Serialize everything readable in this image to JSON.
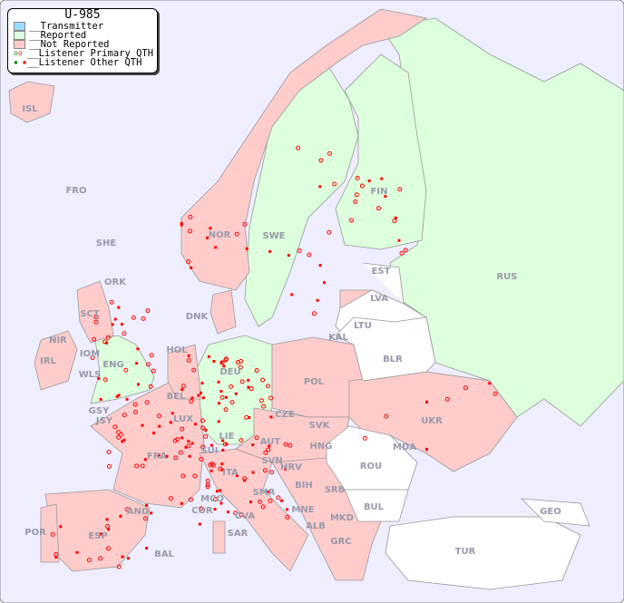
{
  "title": "U-985",
  "legend": [
    {
      "label": "__Transmitter",
      "color": "#99ddff",
      "kind": "swatch"
    },
    {
      "label": "__Reported",
      "color": "#ddffdd",
      "kind": "swatch"
    },
    {
      "label": "__Not Reported",
      "color": "#ffcccc",
      "kind": "swatch"
    },
    {
      "label": "__Listener Primary QTH",
      "kind": "circle"
    },
    {
      "label": "__Listener Other QTH",
      "kind": "square"
    }
  ],
  "colors": {
    "sea": "#eeeeff",
    "reported": "#ddffdd",
    "not_reported": "#ffcccc",
    "no_data": "#ffffff",
    "listener": "#ff0000",
    "listener_reported": "#008800"
  },
  "labels": {
    "ISL": "ISL",
    "FRO": "FRO",
    "SHE": "SHE",
    "ORK": "ORK",
    "NOR": "NOR",
    "SWE": "SWE",
    "FIN": "FIN",
    "RUS": "RUS",
    "EST": "EST",
    "LVA": "LVA",
    "LTU": "LTU",
    "KAL": "KAL",
    "BLR": "BLR",
    "DNK": "DNK",
    "HOL": "HOL",
    "BEL": "BEL",
    "DEU": "DEU",
    "POL": "POL",
    "IRL": "IRL",
    "NIR": "NIR",
    "SCT": "SCT",
    "IOM": "IOM",
    "WLS": "WLS",
    "ENG": "ENG",
    "GSY": "GSY",
    "JSY": "JSY",
    "LUX": "LUX",
    "CZE": "CZE",
    "SVK": "SVK",
    "UKR": "UKR",
    "FRA": "FRA",
    "SUI": "SUI",
    "LIE": "LIE",
    "AUT": "AUT",
    "HNG": "HNG",
    "MDA": "MDA",
    "ROU": "ROU",
    "SVN": "SVN",
    "HRV": "HRV",
    "BIH": "BIH",
    "SRB": "SRB",
    "ITA": "ITA",
    "MCO": "MCO",
    "COR": "COR",
    "SMR": "SMR",
    "CVA": "CVA",
    "MNE": "MNE",
    "ALB": "ALB",
    "MKD": "MKD",
    "BUL": "BUL",
    "GRC": "GRC",
    "TUR": "TUR",
    "GEO": "GEO",
    "AND": "AND",
    "POR": "POR",
    "ESP": "ESP",
    "BAL": "BAL",
    "SAR": "SAR"
  }
}
